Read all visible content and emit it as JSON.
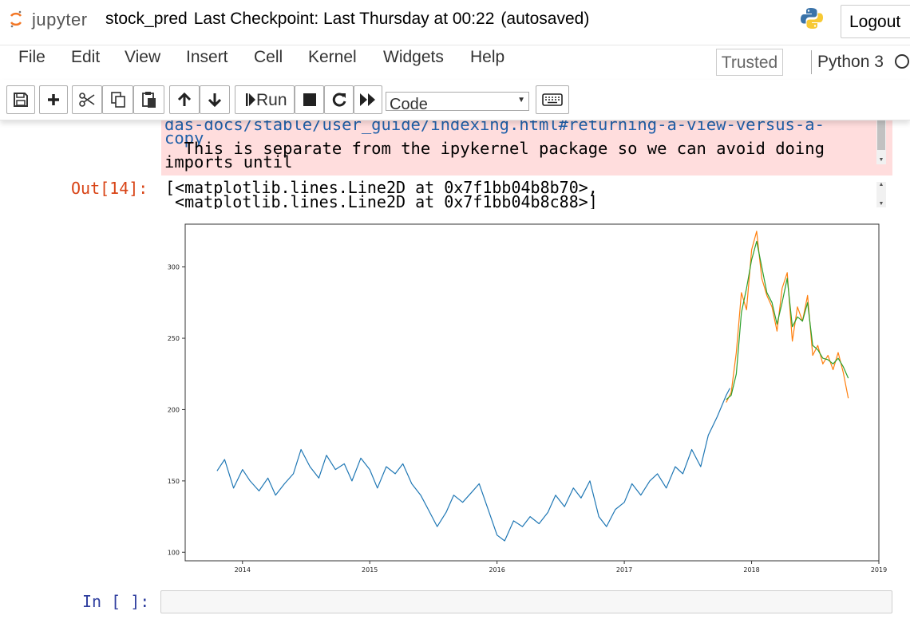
{
  "header": {
    "logo_text": "jupyter",
    "notebook_name": "stock_pred",
    "checkpoint_text": "Last Checkpoint: Last Thursday at 00:22",
    "autosave_text": "(autosaved)",
    "logout_label": "Logout"
  },
  "menubar": {
    "items": [
      "File",
      "Edit",
      "View",
      "Insert",
      "Cell",
      "Kernel",
      "Widgets",
      "Help"
    ],
    "trusted_label": "Trusted",
    "kernel_name": "Python 3"
  },
  "toolbar": {
    "run_label": "Run",
    "cell_type": "Code",
    "icons": [
      "save-icon",
      "plus-icon",
      "cut-icon",
      "copy-icon",
      "paste-icon",
      "arrow-up-icon",
      "arrow-down-icon",
      "run-icon",
      "stop-icon",
      "restart-icon",
      "fast-forward-icon",
      "keyboard-icon"
    ]
  },
  "stderr": {
    "line1": "das-docs/stable/user_guide/indexing.html#returning-a-view-versus-a-",
    "line2": "copy",
    "line3": "  This is separate from the ipykernel package so we can avoid doing",
    "line4": "imports until"
  },
  "output": {
    "prompt": "Out[14]:",
    "line1": "[<matplotlib.lines.Line2D at 0x7f1bb04b8b70>,",
    "line2": " <matplotlib.lines.Line2D at 0x7f1bb04b8c88>]"
  },
  "input_cell": {
    "prompt": "In [ ]:"
  },
  "chart_data": {
    "type": "line",
    "title": "",
    "xlabel": "",
    "ylabel": "",
    "xlim": [
      2013.55,
      2019.0
    ],
    "ylim": [
      94,
      330
    ],
    "x_ticks": [
      "2014",
      "2015",
      "2016",
      "2017",
      "2018",
      "2019"
    ],
    "y_ticks": [
      "100",
      "150",
      "200",
      "250",
      "300"
    ],
    "grid": false,
    "legend": "none",
    "series": [
      {
        "color": "#1f77b4",
        "x": [
          2013.8,
          2013.86,
          2013.93,
          2014.0,
          2014.06,
          2014.13,
          2014.2,
          2014.26,
          2014.33,
          2014.4,
          2014.46,
          2014.53,
          2014.6,
          2014.66,
          2014.73,
          2014.8,
          2014.86,
          2014.93,
          2015.0,
          2015.06,
          2015.13,
          2015.2,
          2015.26,
          2015.33,
          2015.4,
          2015.46,
          2015.53,
          2015.6,
          2015.66,
          2015.73,
          2015.8,
          2015.86,
          2015.93,
          2016.0,
          2016.06,
          2016.13,
          2016.2,
          2016.26,
          2016.33,
          2016.4,
          2016.46,
          2016.53,
          2016.6,
          2016.66,
          2016.73,
          2016.8,
          2016.86,
          2016.93,
          2017.0,
          2017.06,
          2017.13,
          2017.2,
          2017.26,
          2017.33,
          2017.4,
          2017.46,
          2017.53,
          2017.6,
          2017.66,
          2017.73,
          2017.8,
          2017.83
        ],
        "y": [
          157,
          165,
          145,
          158,
          150,
          143,
          152,
          140,
          148,
          155,
          172,
          160,
          152,
          168,
          158,
          162,
          150,
          166,
          158,
          145,
          160,
          155,
          162,
          148,
          140,
          130,
          118,
          128,
          140,
          135,
          142,
          148,
          130,
          112,
          108,
          122,
          118,
          125,
          120,
          128,
          140,
          132,
          145,
          138,
          150,
          125,
          118,
          130,
          135,
          148,
          140,
          150,
          155,
          145,
          160,
          155,
          172,
          160,
          182,
          195,
          210,
          215
        ]
      },
      {
        "color": "#ff7f0e",
        "x": [
          2017.8,
          2017.84,
          2017.88,
          2017.92,
          2017.96,
          2018.0,
          2018.04,
          2018.08,
          2018.12,
          2018.16,
          2018.2,
          2018.24,
          2018.28,
          2018.32,
          2018.36,
          2018.4,
          2018.44,
          2018.48,
          2018.52,
          2018.56,
          2018.6,
          2018.64,
          2018.68,
          2018.72,
          2018.76
        ],
        "y": [
          205,
          212,
          240,
          282,
          270,
          312,
          325,
          292,
          280,
          272,
          255,
          285,
          296,
          248,
          272,
          262,
          280,
          238,
          245,
          232,
          238,
          228,
          240,
          226,
          208
        ]
      },
      {
        "color": "#2ca02c",
        "x": [
          2017.8,
          2017.84,
          2017.88,
          2017.92,
          2017.96,
          2018.0,
          2018.04,
          2018.08,
          2018.12,
          2018.16,
          2018.2,
          2018.24,
          2018.28,
          2018.32,
          2018.36,
          2018.4,
          2018.44,
          2018.48,
          2018.52,
          2018.56,
          2018.6,
          2018.64,
          2018.68,
          2018.72,
          2018.76
        ],
        "y": [
          207,
          210,
          225,
          268,
          285,
          305,
          318,
          300,
          282,
          275,
          260,
          275,
          292,
          258,
          265,
          262,
          275,
          245,
          242,
          236,
          235,
          232,
          236,
          230,
          222
        ]
      }
    ]
  }
}
